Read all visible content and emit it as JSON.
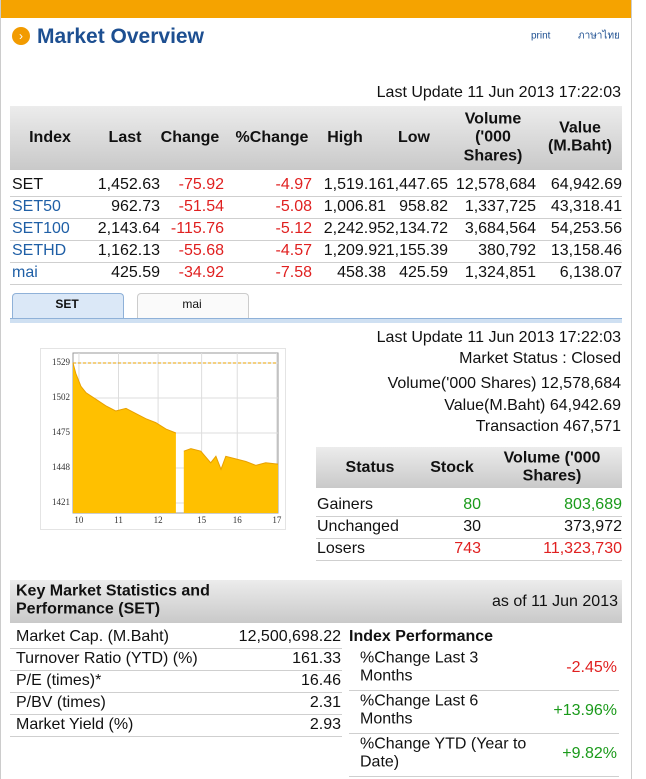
{
  "header": {
    "title": "Market Overview",
    "links": [
      "print",
      "ภาษาไทย"
    ]
  },
  "index_table": {
    "last_update": "Last Update 11 Jun 2013 17:22:03",
    "columns": [
      "Index",
      "Last",
      "Change",
      "%Change",
      "High",
      "Low",
      "Volume ('000 Shares)",
      "Value (M.Baht)"
    ],
    "rows": [
      [
        "SET",
        "1,452.63",
        "-75.92",
        "-4.97",
        "1,519.16",
        "1,447.65",
        "12,578,684",
        "64,942.69"
      ],
      [
        "SET50",
        "962.73",
        "-51.54",
        "-5.08",
        "1,006.81",
        "958.82",
        "1,337,725",
        "43,318.41"
      ],
      [
        "SET100",
        "2,143.64",
        "-115.76",
        "-5.12",
        "2,242.95",
        "2,134.72",
        "3,684,564",
        "54,253.56"
      ],
      [
        "SETHD",
        "1,162.13",
        "-55.68",
        "-4.57",
        "1,209.92",
        "1,155.39",
        "380,792",
        "13,158.46"
      ],
      [
        "mai",
        "425.59",
        "-34.92",
        "-7.58",
        "458.38",
        "425.59",
        "1,324,851",
        "6,138.07"
      ]
    ]
  },
  "tabs": [
    "SET",
    "mai"
  ],
  "market_info": {
    "last_update": "Last Update 11 Jun 2013 17:22:03",
    "lines": [
      "Market Status : Closed",
      "Volume('000 Shares) 12,578,684",
      "Value(M.Baht) 64,942.69",
      "Transaction 467,571"
    ]
  },
  "status_table": {
    "columns": [
      "Status",
      "Stock",
      "Volume ('000 Shares)"
    ],
    "rows": [
      [
        "Gainers",
        "80",
        "803,689"
      ],
      [
        "Unchanged",
        "30",
        "373,972"
      ],
      [
        "Losers",
        "743",
        "11,323,730"
      ]
    ]
  },
  "key_stats": {
    "title": "Key Market Statistics and Performance (SET)",
    "as_of": "as of 11 Jun 2013",
    "rows": [
      [
        "Market Cap. (M.Baht)",
        "12,500,698.22"
      ],
      [
        "Turnover Ratio (YTD) (%)",
        "161.33"
      ],
      [
        "P/E (times)*",
        "16.46"
      ],
      [
        "P/BV (times)",
        "2.31"
      ],
      [
        "Market Yield (%)",
        "2.93"
      ]
    ],
    "performance_title": "Index Performance",
    "performance": [
      [
        "%Change Last 3 Months",
        "-2.45%"
      ],
      [
        "%Change Last 6 Months",
        "+13.96%"
      ],
      [
        "%Change YTD (Year to Date)",
        "+9.82%"
      ]
    ]
  },
  "chart_data": {
    "type": "area",
    "x": [
      -0.15,
      -0.08,
      0.05,
      0.18,
      0.43,
      0.68,
      0.93,
      1.19,
      1.44,
      1.69,
      1.94,
      2.2,
      2.45,
      2.55,
      2.65,
      2.83,
      3.08,
      3.33,
      3.46,
      3.59,
      3.71,
      3.96,
      4.22,
      4.47,
      4.72,
      5.03
    ],
    "values": [
      1529,
      1521,
      1511,
      1506,
      1501,
      1496,
      1492,
      1494,
      1490,
      1486,
      1483,
      1478,
      1475,
      null,
      1461,
      1463,
      1461,
      1452,
      1457,
      1447,
      1457,
      1455,
      1453,
      1450,
      1452,
      1451
    ],
    "color": "#ffc000",
    "line_color": "#e8a000",
    "ref_line": 1529,
    "xlim": [
      -0.15,
      5.03
    ],
    "ylim": [
      1413.3,
      1536.7
    ],
    "xticks": [
      {
        "value": 0,
        "label": "10"
      },
      {
        "value": 1,
        "label": "11"
      },
      {
        "value": 2,
        "label": "12"
      },
      {
        "value": 3.1,
        "label": "15"
      },
      {
        "value": 4,
        "label": "16"
      },
      {
        "value": 5,
        "label": "17"
      }
    ],
    "yticks": [
      1421,
      1448,
      1475,
      1502,
      1529
    ],
    "grid": true
  }
}
